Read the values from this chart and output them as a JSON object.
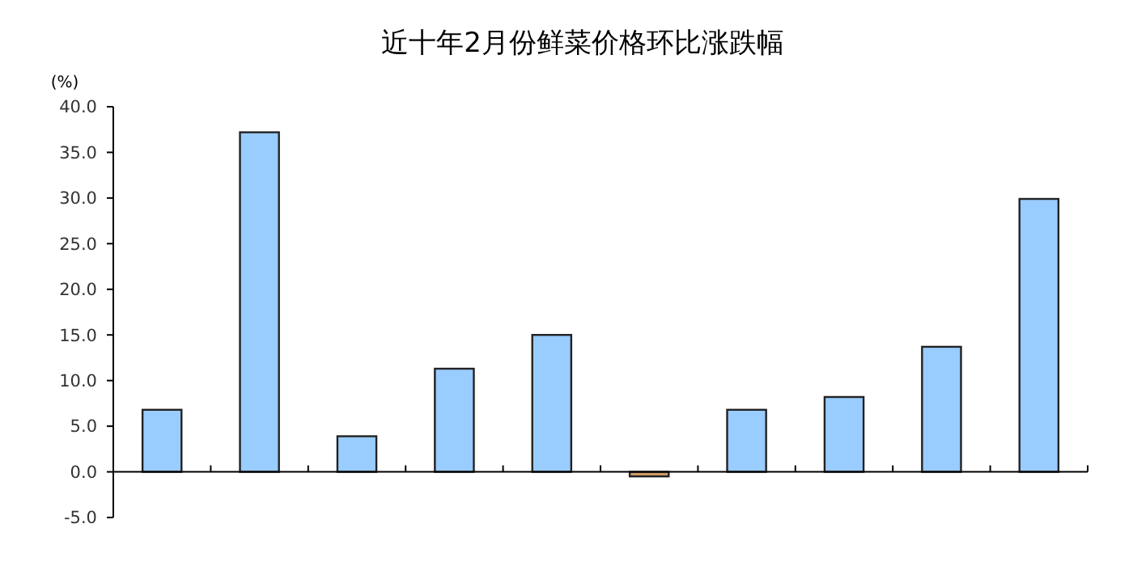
{
  "chart_data": {
    "type": "bar",
    "title": "近十年2月份鲜菜价格环比涨跌幅",
    "ylabel": "(%)",
    "categories": [
      null,
      null,
      null,
      null,
      null,
      null,
      null,
      null,
      null,
      null
    ],
    "values": [
      6.8,
      37.2,
      3.9,
      11.3,
      15.0,
      -0.5,
      6.8,
      8.2,
      13.7,
      29.9
    ],
    "colors": [
      "#99ccff",
      "#99ccff",
      "#99ccff",
      "#99ccff",
      "#99ccff",
      "#cc9966",
      "#99ccff",
      "#99ccff",
      "#99ccff",
      "#99ccff"
    ],
    "ylim": [
      -5,
      40
    ],
    "yticks": [
      {
        "value": -5,
        "label": "-5.0"
      },
      {
        "value": 0,
        "label": "0.0"
      },
      {
        "value": 5,
        "label": "5.0"
      },
      {
        "value": 10,
        "label": "10.0"
      },
      {
        "value": 15,
        "label": "15.0"
      },
      {
        "value": 20,
        "label": "20.0"
      },
      {
        "value": 25,
        "label": "25.0"
      },
      {
        "value": 30,
        "label": "30.0"
      },
      {
        "value": 35,
        "label": "35.0"
      },
      {
        "value": 40,
        "label": "40.0"
      }
    ]
  }
}
